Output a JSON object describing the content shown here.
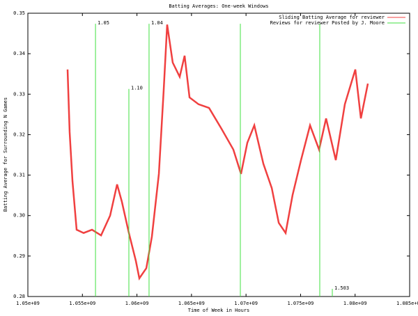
{
  "chart_data": {
    "type": "line",
    "title": "Batting Averages: One-week Windows",
    "x_label": "Time of Week in Hours",
    "y_label": "Batting Average for Surrounding N Games",
    "xlim": [
      1050000000,
      1085000000
    ],
    "xticks": [
      {
        "value": 1050000000,
        "label": "1.05e+09"
      },
      {
        "value": 1055000000,
        "label": "1.055e+09"
      },
      {
        "value": 1060000000,
        "label": "1.06e+09"
      },
      {
        "value": 1065000000,
        "label": "1.065e+09"
      },
      {
        "value": 1070000000,
        "label": "1.07e+09"
      },
      {
        "value": 1075000000,
        "label": "1.075e+09"
      },
      {
        "value": 1080000000,
        "label": "1.08e+09"
      },
      {
        "value": 1085000000,
        "label": "1.085e+09"
      }
    ],
    "ylim": [
      0.28,
      0.35
    ],
    "yticks": [
      0.28,
      0.29,
      {
        "value": 0.3,
        "label": "0.30"
      },
      0.31,
      0.32,
      0.33,
      0.34,
      0.35
    ],
    "legend": "top-right",
    "series": [
      {
        "name": "Sliding Batting Average for reviewer",
        "color": "#f04040",
        "style": "linespoints",
        "x": [
          1053640000,
          1053830000,
          1054090000,
          1054470000,
          1055110000,
          1055880000,
          1056710000,
          1057540000,
          1058180000,
          1058620000,
          1059260000,
          1059900000,
          1060220000,
          1060860000,
          1061370000,
          1062010000,
          1062450000,
          1062770000,
          1063280000,
          1063920000,
          1064370000,
          1064820000,
          1065650000,
          1066610000,
          1067760000,
          1068840000,
          1069540000,
          1070120000,
          1070760000,
          1071590000,
          1072360000,
          1073000000,
          1073630000,
          1074270000,
          1075040000,
          1075870000,
          1076700000,
          1077340000,
          1078230000,
          1079060000,
          1080020000,
          1080530000,
          1081170000
        ],
        "values": [
          0.3361,
          0.3206,
          0.3085,
          0.2965,
          0.2957,
          0.2965,
          0.2951,
          0.3,
          0.3077,
          0.3034,
          0.2957,
          0.2888,
          0.2845,
          0.287,
          0.2948,
          0.3103,
          0.3309,
          0.3472,
          0.3378,
          0.3343,
          0.3395,
          0.3292,
          0.3275,
          0.3266,
          0.3214,
          0.3163,
          0.3103,
          0.318,
          0.3223,
          0.3128,
          0.3068,
          0.2982,
          0.2957,
          0.3051,
          0.3137,
          0.3223,
          0.3163,
          0.324,
          0.3137,
          0.3275,
          0.3361,
          0.324,
          0.3326
        ]
      },
      {
        "name": "Reviews for reviewer Posted by J. Moore",
        "color": "#40e040",
        "style": "impulses",
        "x": [
          1056200000,
          1059260000,
          1061110000,
          1069480000,
          1076760000,
          1077910000
        ],
        "values": [
          0.3474,
          0.3313,
          0.3474,
          0.3474,
          0.3474,
          0.2819
        ],
        "value_labels": [
          "1.05",
          "1.10",
          "1.04",
          null,
          null,
          "1.503"
        ]
      }
    ]
  }
}
